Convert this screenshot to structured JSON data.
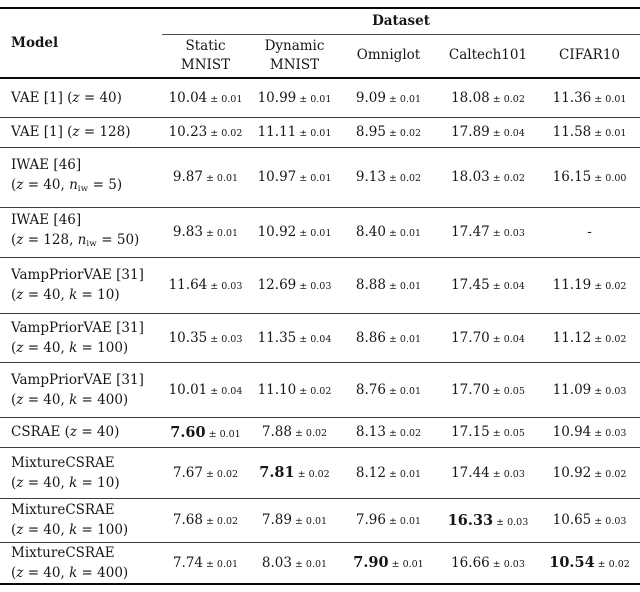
{
  "table": {
    "header": {
      "model_label": "Model",
      "dataset_label": "Dataset",
      "columns": [
        {
          "line1": "Static",
          "line2": "MNIST"
        },
        {
          "line1": "Dynamic",
          "line2": "MNIST"
        },
        {
          "line1": "Omniglot"
        },
        {
          "line1": "Caltech101"
        },
        {
          "line1": "CIFAR10"
        }
      ]
    },
    "rows": [
      {
        "model": [
          "VAE [1] (z = 40)"
        ],
        "cells": [
          {
            "v": "10.04",
            "pm": "± 0.01",
            "b": false
          },
          {
            "v": "10.99",
            "pm": "± 0.01",
            "b": false
          },
          {
            "v": "9.09",
            "pm": "± 0.01",
            "b": false
          },
          {
            "v": "18.08",
            "pm": "± 0.02",
            "b": false
          },
          {
            "v": "11.36",
            "pm": "± 0.01",
            "b": false
          }
        ]
      },
      {
        "model": [
          "VAE [1] (z = 128)"
        ],
        "cells": [
          {
            "v": "10.23",
            "pm": "± 0.02",
            "b": false
          },
          {
            "v": "11.11",
            "pm": "± 0.01",
            "b": false
          },
          {
            "v": "8.95",
            "pm": "± 0.02",
            "b": false
          },
          {
            "v": "17.89",
            "pm": "± 0.04",
            "b": false
          },
          {
            "v": "11.58",
            "pm": "± 0.01",
            "b": false
          }
        ]
      },
      {
        "model": [
          "IWAE [46]",
          "(z = 40, n_{iw} = 5)"
        ],
        "cells": [
          {
            "v": "9.87",
            "pm": "± 0.01",
            "b": false
          },
          {
            "v": "10.97",
            "pm": "± 0.01",
            "b": false
          },
          {
            "v": "9.13",
            "pm": "± 0.02",
            "b": false
          },
          {
            "v": "18.03",
            "pm": "± 0.02",
            "b": false
          },
          {
            "v": "16.15",
            "pm": "± 0.00",
            "b": false
          }
        ]
      },
      {
        "model": [
          "IWAE [46]",
          "(z = 128, n_{iw} = 50)"
        ],
        "cells": [
          {
            "v": "9.83",
            "pm": "± 0.01",
            "b": false
          },
          {
            "v": "10.92",
            "pm": "± 0.01",
            "b": false
          },
          {
            "v": "8.40",
            "pm": "± 0.01",
            "b": false
          },
          {
            "v": "17.47",
            "pm": "± 0.03",
            "b": false
          },
          {
            "v": "-",
            "pm": "",
            "b": false
          }
        ]
      },
      {
        "model": [
          "VampPriorVAE [31]",
          "(z = 40, k = 10)"
        ],
        "cells": [
          {
            "v": "11.64",
            "pm": "± 0.03",
            "b": false
          },
          {
            "v": "12.69",
            "pm": "± 0.03",
            "b": false
          },
          {
            "v": "8.88",
            "pm": "± 0.01",
            "b": false
          },
          {
            "v": "17.45",
            "pm": "± 0.04",
            "b": false
          },
          {
            "v": "11.19",
            "pm": "± 0.02",
            "b": false
          }
        ]
      },
      {
        "model": [
          "VampPriorVAE [31]",
          "(z = 40, k = 100)"
        ],
        "cells": [
          {
            "v": "10.35",
            "pm": "± 0.03",
            "b": false
          },
          {
            "v": "11.35",
            "pm": "± 0.04",
            "b": false
          },
          {
            "v": "8.86",
            "pm": "± 0.01",
            "b": false
          },
          {
            "v": "17.70",
            "pm": "± 0.04",
            "b": false
          },
          {
            "v": "11.12",
            "pm": "± 0.02",
            "b": false
          }
        ]
      },
      {
        "model": [
          "VampPriorVAE [31]",
          "(z = 40, k = 400)"
        ],
        "cells": [
          {
            "v": "10.01",
            "pm": "± 0.04",
            "b": false
          },
          {
            "v": "11.10",
            "pm": "± 0.02",
            "b": false
          },
          {
            "v": "8.76",
            "pm": "± 0.01",
            "b": false
          },
          {
            "v": "17.70",
            "pm": "± 0.05",
            "b": false
          },
          {
            "v": "11.09",
            "pm": "± 0.03",
            "b": false
          }
        ]
      },
      {
        "model": [
          "CSRAE (z = 40)"
        ],
        "cells": [
          {
            "v": "7.60",
            "pm": "± 0.01",
            "b": true
          },
          {
            "v": "7.88",
            "pm": "± 0.02",
            "b": false
          },
          {
            "v": "8.13",
            "pm": "± 0.02",
            "b": false
          },
          {
            "v": "17.15",
            "pm": "± 0.05",
            "b": false
          },
          {
            "v": "10.94",
            "pm": "± 0.03",
            "b": false
          }
        ]
      },
      {
        "model": [
          "MixtureCSRAE",
          "(z = 40, k = 10)"
        ],
        "cells": [
          {
            "v": "7.67",
            "pm": "± 0.02",
            "b": false
          },
          {
            "v": "7.81",
            "pm": "± 0.02",
            "b": true
          },
          {
            "v": "8.12",
            "pm": "± 0.01",
            "b": false
          },
          {
            "v": "17.44",
            "pm": "± 0.03",
            "b": false
          },
          {
            "v": "10.92",
            "pm": "± 0.02",
            "b": false
          }
        ]
      },
      {
        "model": [
          "MixtureCSRAE",
          "(z = 40, k = 100)"
        ],
        "cells": [
          {
            "v": "7.68",
            "pm": "± 0.02",
            "b": false
          },
          {
            "v": "7.89",
            "pm": "± 0.01",
            "b": false
          },
          {
            "v": "7.96",
            "pm": "± 0.01",
            "b": false
          },
          {
            "v": "16.33",
            "pm": "± 0.03",
            "b": true
          },
          {
            "v": "10.65",
            "pm": "± 0.03",
            "b": false
          }
        ]
      },
      {
        "model": [
          "MixtureCSRAE",
          "(z = 40, k = 400)"
        ],
        "cells": [
          {
            "v": "7.74",
            "pm": "± 0.01",
            "b": false
          },
          {
            "v": "8.03",
            "pm": "± 0.01",
            "b": false
          },
          {
            "v": "7.90",
            "pm": "± 0.01",
            "b": true
          },
          {
            "v": "16.66",
            "pm": "± 0.03",
            "b": false
          },
          {
            "v": "10.54",
            "pm": "± 0.02",
            "b": true
          }
        ]
      }
    ]
  },
  "colors": {
    "text": "#161616",
    "rule_heavy": "#0a0a0a",
    "rule_light": "#3d3d3d",
    "background": "#ffffff"
  }
}
